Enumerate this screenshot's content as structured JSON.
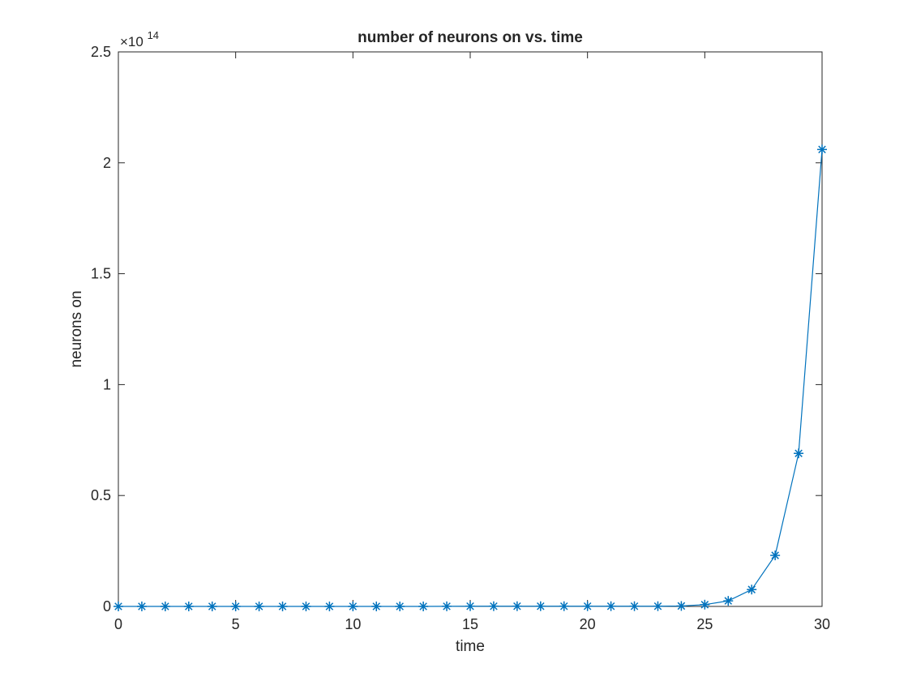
{
  "chart_data": {
    "type": "line",
    "title": "number of neurons on vs. time",
    "xlabel": "time",
    "ylabel": "neurons on",
    "y_exponent_label": "×10",
    "y_exponent_power": "14",
    "y_scale_factor": 100000000000000.0,
    "xlim": [
      0,
      30
    ],
    "ylim": [
      0,
      2.5
    ],
    "x_ticks": [
      0,
      5,
      10,
      15,
      20,
      25,
      30
    ],
    "x_tick_labels": [
      "0",
      "5",
      "10",
      "15",
      "20",
      "25",
      "30"
    ],
    "y_ticks": [
      0,
      0.5,
      1,
      1.5,
      2,
      2.5
    ],
    "y_tick_labels": [
      "0",
      "0.5",
      "1",
      "1.5",
      "2",
      "2.5"
    ],
    "grid": false,
    "marker": "asterisk",
    "color": "#0072BD",
    "series": [
      {
        "x": [
          0,
          1,
          2,
          3,
          4,
          5,
          6,
          7,
          8,
          9,
          10,
          11,
          12,
          13,
          14,
          15,
          16,
          17,
          18,
          19,
          20,
          21,
          22,
          23,
          24,
          25,
          26,
          27,
          28,
          29,
          30
        ],
        "y": [
          0,
          0,
          0,
          0,
          0,
          0,
          0,
          0,
          0,
          0,
          0,
          0,
          0,
          0,
          0.0005,
          0.001,
          0.001,
          0.001,
          0.001,
          0.001,
          0.001,
          0.001,
          0.001,
          0.001,
          0.002,
          0.008,
          0.025,
          0.076,
          0.23,
          0.69,
          2.06
        ]
      }
    ]
  }
}
